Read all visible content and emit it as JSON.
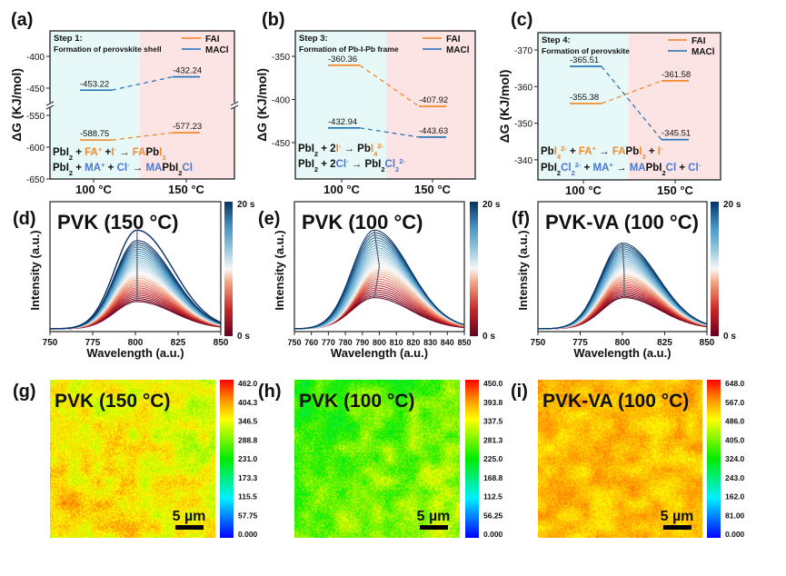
{
  "chart_data": [
    {
      "type": "line",
      "panel": "(a)",
      "kind": "energy-levels",
      "step": "Step 1:",
      "subtitle": "Formation of perovskite shell",
      "ylabel": "ΔG (KJ/mol)",
      "categories": [
        "100 °C",
        "150 °C"
      ],
      "yticks": [
        "-400",
        "-450",
        "-550",
        "-600",
        "-650"
      ],
      "ytick_values": [
        -400,
        -450,
        -550,
        -600,
        -650
      ],
      "ybreak": [
        -475,
        -537
      ],
      "series": [
        {
          "name": "FAI",
          "color": "#f5821f",
          "values": [
            -588.75,
            -577.23
          ],
          "labels": [
            "-588.75",
            "-577.23"
          ]
        },
        {
          "name": "MACl",
          "color": "#1f6fb5",
          "values": [
            -453.22,
            -432.24
          ],
          "labels": [
            "-453.22",
            "-432.24"
          ]
        }
      ],
      "equations": [
        [
          [
            "PbI",
            "k",
            ""
          ],
          [
            "2",
            "k",
            "sub"
          ],
          [
            " + ",
            "k",
            ""
          ],
          [
            "FA",
            "o",
            ""
          ],
          [
            "+",
            "o",
            "sup"
          ],
          [
            "  +",
            "k",
            ""
          ],
          [
            "I",
            "o",
            ""
          ],
          [
            "-",
            "o",
            "sup"
          ],
          [
            " → ",
            "k",
            ""
          ],
          [
            "FA",
            "o",
            ""
          ],
          [
            "Pb",
            "k",
            ""
          ],
          [
            "I",
            "o",
            ""
          ],
          [
            "3",
            "o",
            "sub"
          ]
        ],
        [
          [
            "PbI",
            "k",
            ""
          ],
          [
            "2",
            "k",
            "sub"
          ],
          [
            " + ",
            "k",
            ""
          ],
          [
            "MA",
            "b",
            ""
          ],
          [
            "+",
            "b",
            "sup"
          ],
          [
            " + ",
            "k",
            ""
          ],
          [
            "Cl",
            "b",
            ""
          ],
          [
            "-",
            "b",
            "sup"
          ],
          [
            " → ",
            "k",
            ""
          ],
          [
            "MA",
            "b",
            ""
          ],
          [
            "PbI",
            "k",
            ""
          ],
          [
            "2",
            "k",
            "sub"
          ],
          [
            "Cl",
            "b",
            ""
          ]
        ]
      ]
    },
    {
      "type": "line",
      "panel": "(b)",
      "kind": "energy-levels",
      "step": "Step 3:",
      "subtitle": "Formation of Pb-I-Pb frame",
      "ylabel": "ΔG (KJ/mol)",
      "categories": [
        "100 °C",
        "150 °C"
      ],
      "yticks": [
        "-350",
        "-400",
        "-450"
      ],
      "ytick_values": [
        -350,
        -400,
        -450
      ],
      "series": [
        {
          "name": "FAI",
          "color": "#f5821f",
          "values": [
            -360.36,
            -407.92
          ],
          "labels": [
            "-360.36",
            "-407.92"
          ]
        },
        {
          "name": "MACl",
          "color": "#1f6fb5",
          "values": [
            -432.94,
            -443.63
          ],
          "labels": [
            "-432.94",
            "-443.63"
          ]
        }
      ],
      "equations": [
        [
          [
            "PbI",
            "k",
            ""
          ],
          [
            "2",
            "k",
            "sub"
          ],
          [
            " + 2",
            "k",
            ""
          ],
          [
            "I",
            "o",
            ""
          ],
          [
            "-",
            "o",
            "sup"
          ],
          [
            " → ",
            "k",
            ""
          ],
          [
            "Pb",
            "k",
            ""
          ],
          [
            "I",
            "o",
            ""
          ],
          [
            "4",
            "o",
            "sub"
          ],
          [
            "2-",
            "o",
            "sup"
          ]
        ],
        [
          [
            "PbI",
            "k",
            ""
          ],
          [
            "2",
            "k",
            "sub"
          ],
          [
            " + 2",
            "k",
            ""
          ],
          [
            "Cl",
            "b",
            ""
          ],
          [
            "-",
            "b",
            "sup"
          ],
          [
            " → ",
            "k",
            ""
          ],
          [
            "PbI",
            "k",
            ""
          ],
          [
            "2",
            "k",
            "sub"
          ],
          [
            "Cl",
            "b",
            ""
          ],
          [
            "2",
            "b",
            "sub"
          ],
          [
            "2-",
            "b",
            "sup"
          ]
        ]
      ]
    },
    {
      "type": "line",
      "panel": "(c)",
      "kind": "energy-levels",
      "step": "Step 4:",
      "subtitle": "Formation of perovskite",
      "ylabel": "ΔG (KJ/mol)",
      "categories": [
        "100 °C",
        "150 °C"
      ],
      "yticks": [
        "-370",
        "-360",
        "-350",
        "-340"
      ],
      "ytick_values": [
        -370,
        -360,
        -350,
        -340
      ],
      "y_inverted": true,
      "series": [
        {
          "name": "FAI",
          "color": "#f5821f",
          "values": [
            -355.38,
            -361.58
          ],
          "labels": [
            "-355.38",
            "-361.58"
          ]
        },
        {
          "name": "MACl",
          "color": "#1f6fb5",
          "values": [
            -365.51,
            -345.51
          ],
          "labels": [
            "-365.51",
            "-345.51"
          ]
        }
      ],
      "equations": [
        [
          [
            "Pb",
            "k",
            ""
          ],
          [
            "I",
            "o",
            ""
          ],
          [
            "4",
            "o",
            "sub"
          ],
          [
            "2-",
            "o",
            "sup"
          ],
          [
            " + ",
            "k",
            ""
          ],
          [
            "FA",
            "o",
            ""
          ],
          [
            "+",
            "o",
            "sup"
          ],
          [
            " → ",
            "k",
            ""
          ],
          [
            "FA",
            "o",
            ""
          ],
          [
            "Pb",
            "k",
            ""
          ],
          [
            "I",
            "o",
            ""
          ],
          [
            "3",
            "o",
            "sub"
          ],
          [
            " + ",
            "k",
            ""
          ],
          [
            "I",
            "o",
            ""
          ],
          [
            "-",
            "o",
            "sup"
          ]
        ],
        [
          [
            "PbI",
            "k",
            ""
          ],
          [
            "2",
            "k",
            "sub"
          ],
          [
            "Cl",
            "b",
            ""
          ],
          [
            "2",
            "b",
            "sub"
          ],
          [
            "2-",
            "b",
            "sup"
          ],
          [
            " + ",
            "k",
            ""
          ],
          [
            "MA",
            "b",
            ""
          ],
          [
            "+",
            "b",
            "sup"
          ],
          [
            " → ",
            "k",
            ""
          ],
          [
            "MA",
            "b",
            ""
          ],
          [
            "PbI",
            "k",
            ""
          ],
          [
            "2",
            "k",
            "sub"
          ],
          [
            "Cl",
            "b",
            ""
          ],
          [
            " + ",
            "k",
            ""
          ],
          [
            "Cl",
            "b",
            ""
          ],
          [
            "-",
            "b",
            "sup"
          ]
        ]
      ]
    },
    {
      "type": "line",
      "panel": "(d)",
      "kind": "pl-spectra",
      "title": "PVK (150 °C)",
      "xlabel": "Wavelength (a.u.)",
      "ylabel": "Intensity (a.u.)",
      "xlim": [
        750,
        850
      ],
      "xticks": [
        "750",
        "775",
        "800",
        "825",
        "850"
      ],
      "xtick_values": [
        750,
        775,
        800,
        825,
        850
      ],
      "colorbar": {
        "top": "20 s",
        "bottom": "0 s"
      },
      "curves": 32,
      "peak_nm_start": 801,
      "peak_nm_mid": 801,
      "peak_nm_end": 801,
      "intensity_start": 0.21,
      "intensity_end": 0.68,
      "final_intensity": 0.76
    },
    {
      "type": "line",
      "panel": "(e)",
      "kind": "pl-spectra",
      "title": "PVK (100 °C)",
      "xlabel": "Wavelength (a.u.)",
      "ylabel": "Intensity (a.u.)",
      "xlim": [
        750,
        850
      ],
      "xticks": [
        "750",
        "760",
        "770",
        "780",
        "790",
        "800",
        "810",
        "820",
        "830",
        "840",
        "850"
      ],
      "xtick_values": [
        750,
        760,
        770,
        780,
        790,
        800,
        810,
        820,
        830,
        840,
        850
      ],
      "colorbar": {
        "top": "20 s",
        "bottom": "0 s"
      },
      "curves": 30,
      "peak_nm_start": 797,
      "peak_nm_mid": 800,
      "peak_nm_end": 797,
      "intensity_start": 0.24,
      "intensity_end": 0.76,
      "final_intensity": 0.76
    },
    {
      "type": "line",
      "panel": "(f)",
      "kind": "pl-spectra",
      "title": "PVK-VA (100 °C)",
      "xlabel": "Wavelength (a.u.)",
      "ylabel": "Intensity (a.u.)",
      "xlim": [
        750,
        850
      ],
      "xticks": [
        "750",
        "775",
        "800",
        "825",
        "850"
      ],
      "xtick_values": [
        750,
        775,
        800,
        825,
        850
      ],
      "colorbar": {
        "top": "20 s",
        "bottom": "0 s"
      },
      "curves": 32,
      "peak_nm_start": 801,
      "peak_nm_mid": 801,
      "peak_nm_end": 800,
      "intensity_start": 0.24,
      "intensity_end": 0.66,
      "final_intensity": 0.66
    },
    {
      "type": "heatmap",
      "panel": "(g)",
      "title": "PVK (150 °C)",
      "scalebar": "5 µm",
      "colorbar_ticks": [
        "462.0",
        "404.3",
        "346.5",
        "288.8",
        "231.0",
        "173.3",
        "115.5",
        "57.75",
        "0.000"
      ],
      "range": [
        0,
        462
      ],
      "typical_value": 345,
      "variation": 40
    },
    {
      "type": "heatmap",
      "panel": "(h)",
      "title": "PVK (100 °C)",
      "scalebar": "5 µm",
      "colorbar_ticks": [
        "450.0",
        "393.8",
        "337.5",
        "281.3",
        "225.0",
        "168.8",
        "112.5",
        "56.25",
        "0.000"
      ],
      "range": [
        0,
        450
      ],
      "typical_value": 280,
      "variation": 45
    },
    {
      "type": "heatmap",
      "panel": "(i)",
      "title": "PVK-VA (100 °C)",
      "scalebar": "5 µm",
      "colorbar_ticks": [
        "648.0",
        "567.0",
        "486.0",
        "405.0",
        "324.0",
        "243.0",
        "162.0",
        "81.00",
        "0.000"
      ],
      "range": [
        0,
        648
      ],
      "typical_value": 530,
      "variation": 40
    }
  ],
  "legend": [
    "FAI",
    "MACl"
  ],
  "colors": {
    "orange_text": "#f08a2c",
    "blue_text": "#4a78d0",
    "cyan_bg": "#e6f8f7",
    "pink_bg": "#fde4e4"
  }
}
